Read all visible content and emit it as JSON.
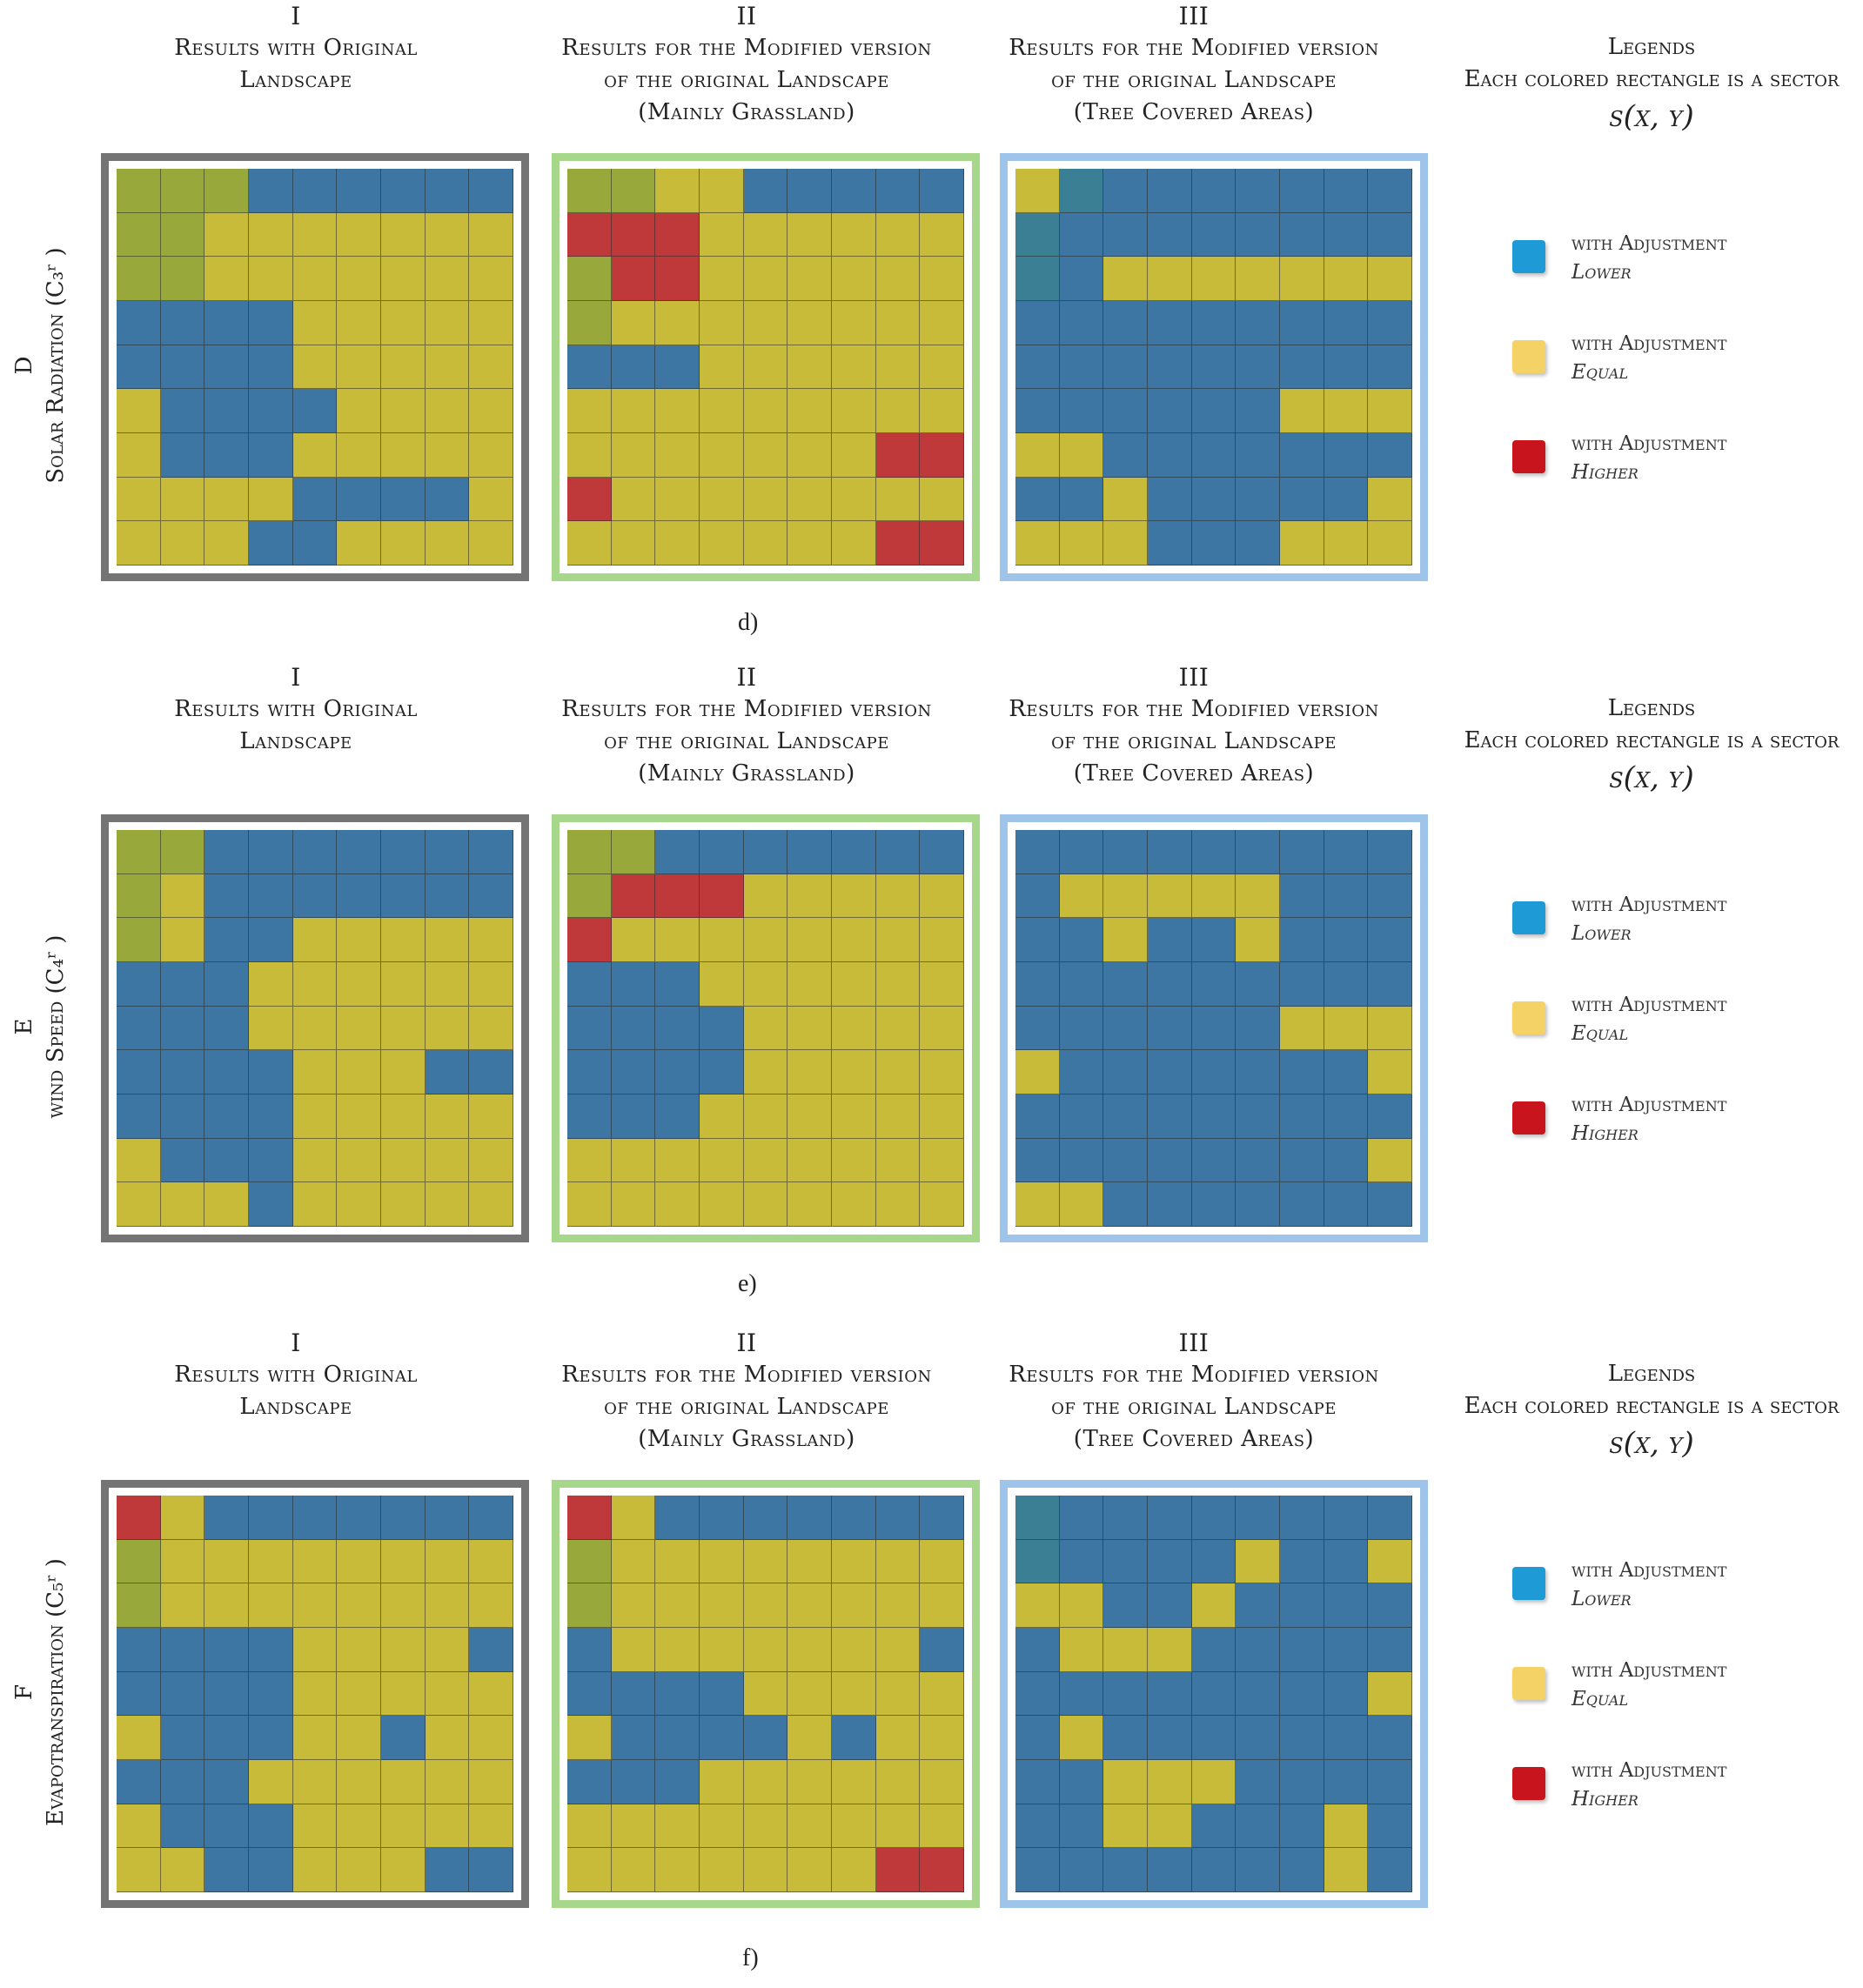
{
  "columns": {
    "I": {
      "num": "I",
      "lines": [
        "Results with Original",
        "Landscape"
      ]
    },
    "II": {
      "num": "II",
      "lines": [
        "Results for the Modified version",
        "of the original Landscape",
        "(Mainly Grassland)"
      ]
    },
    "III": {
      "num": "III",
      "lines": [
        "Results for the Modified version",
        "of the original Landscape",
        "(Tree Covered Areas)"
      ]
    }
  },
  "legend_header": {
    "title": "Legends",
    "subtitle": "Each colored rectangle is a sector",
    "formula": "s(x, y)"
  },
  "legend_items": [
    {
      "line1": "with Adjustment",
      "line2": "Lower",
      "color": "#1e9ad6"
    },
    {
      "line1": "with Adjustment",
      "line2": "Equal",
      "color": "#f5d266"
    },
    {
      "line1": "with Adjustment",
      "line2": "Higher",
      "color": "#c8141c"
    }
  ],
  "sections": [
    {
      "letter": "D",
      "variable": "Solar Radiation (C₃ʳ )",
      "caption": "d)",
      "panels": [
        [
          "gggbbbbbb",
          "ggyyyyyyy",
          "ggyyyyyyy",
          "bbbbyyyyy",
          "bbbbyyyyy",
          "ybbbbyyyy",
          "ybbbyyyyy",
          "yyyybbbby",
          "yyybbyyyy"
        ],
        [
          "ggyybbbbb",
          "rrryyyyyy",
          "grryyyyyy",
          "gyyyyyyyy",
          "bbbyyyyyy",
          "yyyyyyyyy",
          "yyyyyyyrr",
          "ryyyyyyyy",
          "yyyyyyyrr"
        ],
        [
          "ytbbbbbbb",
          "tbbbbbbbb",
          "tbyyyyyyy",
          "bbbbbbbbb",
          "bbbbbbbbb",
          "bbbbbbyyy",
          "yybbbbbbb",
          "bbybbbbby",
          "yyybbbyyy"
        ]
      ]
    },
    {
      "letter": "E",
      "variable": "wind Speed (C₄ʳ )",
      "caption": "e)",
      "panels": [
        [
          "ggbbbbbbb",
          "gybbbbbbb",
          "gybbyyyyy",
          "bbbyyyyyy",
          "bbbyyyyyy",
          "bbbbyyybb",
          "bbbbyyyyy",
          "ybbbyyyyy",
          "yyybyyyyy"
        ],
        [
          "ggbbbbbbb",
          "grrryyyyy",
          "ryyyyyyyy",
          "bbbyyyyyy",
          "bbbbyyyyy",
          "bbbbyyyyy",
          "bbbyyyyyy",
          "yyyyyyyyy",
          "yyyyyyyyy"
        ],
        [
          "bbbbbbbbb",
          "byyyyybbb",
          "bbybbybbb",
          "bbbbbbbbb",
          "bbbbbbyyy",
          "ybbbbbbby",
          "bbbbbbbbb",
          "bbbbbbbby",
          "yybbbbbbb"
        ]
      ]
    },
    {
      "letter": "F",
      "variable": "Evapotranspiration (C₅ʳ )",
      "caption": "f)",
      "panels": [
        [
          "rybbbbbbb",
          "gyyyyyyyy",
          "gyyyyyyyy",
          "bbbbyyyyb",
          "bbbbyyyyy",
          "ybbbyybyy",
          "bbbyyyyyy",
          "ybbbyyyyy",
          "yybbyyybb"
        ],
        [
          "rybbbbbbb",
          "gyyyyyyyy",
          "gyyyyyyyy",
          "byyyyyyyb",
          "bbbbyyyyy",
          "ybbbbybyy",
          "bbbyyyyyy",
          "yyyyyyyyy",
          "yyyyyyyrr"
        ],
        [
          "tbbbbbbbb",
          "tbbbbybby",
          "yybbybbbb",
          "byyybbbbb",
          "bbbbbbbby",
          "bybbbbbbb",
          "bbyyybbbb",
          "bbyybbbyb",
          "bbbbbbbyb"
        ]
      ]
    }
  ]
}
